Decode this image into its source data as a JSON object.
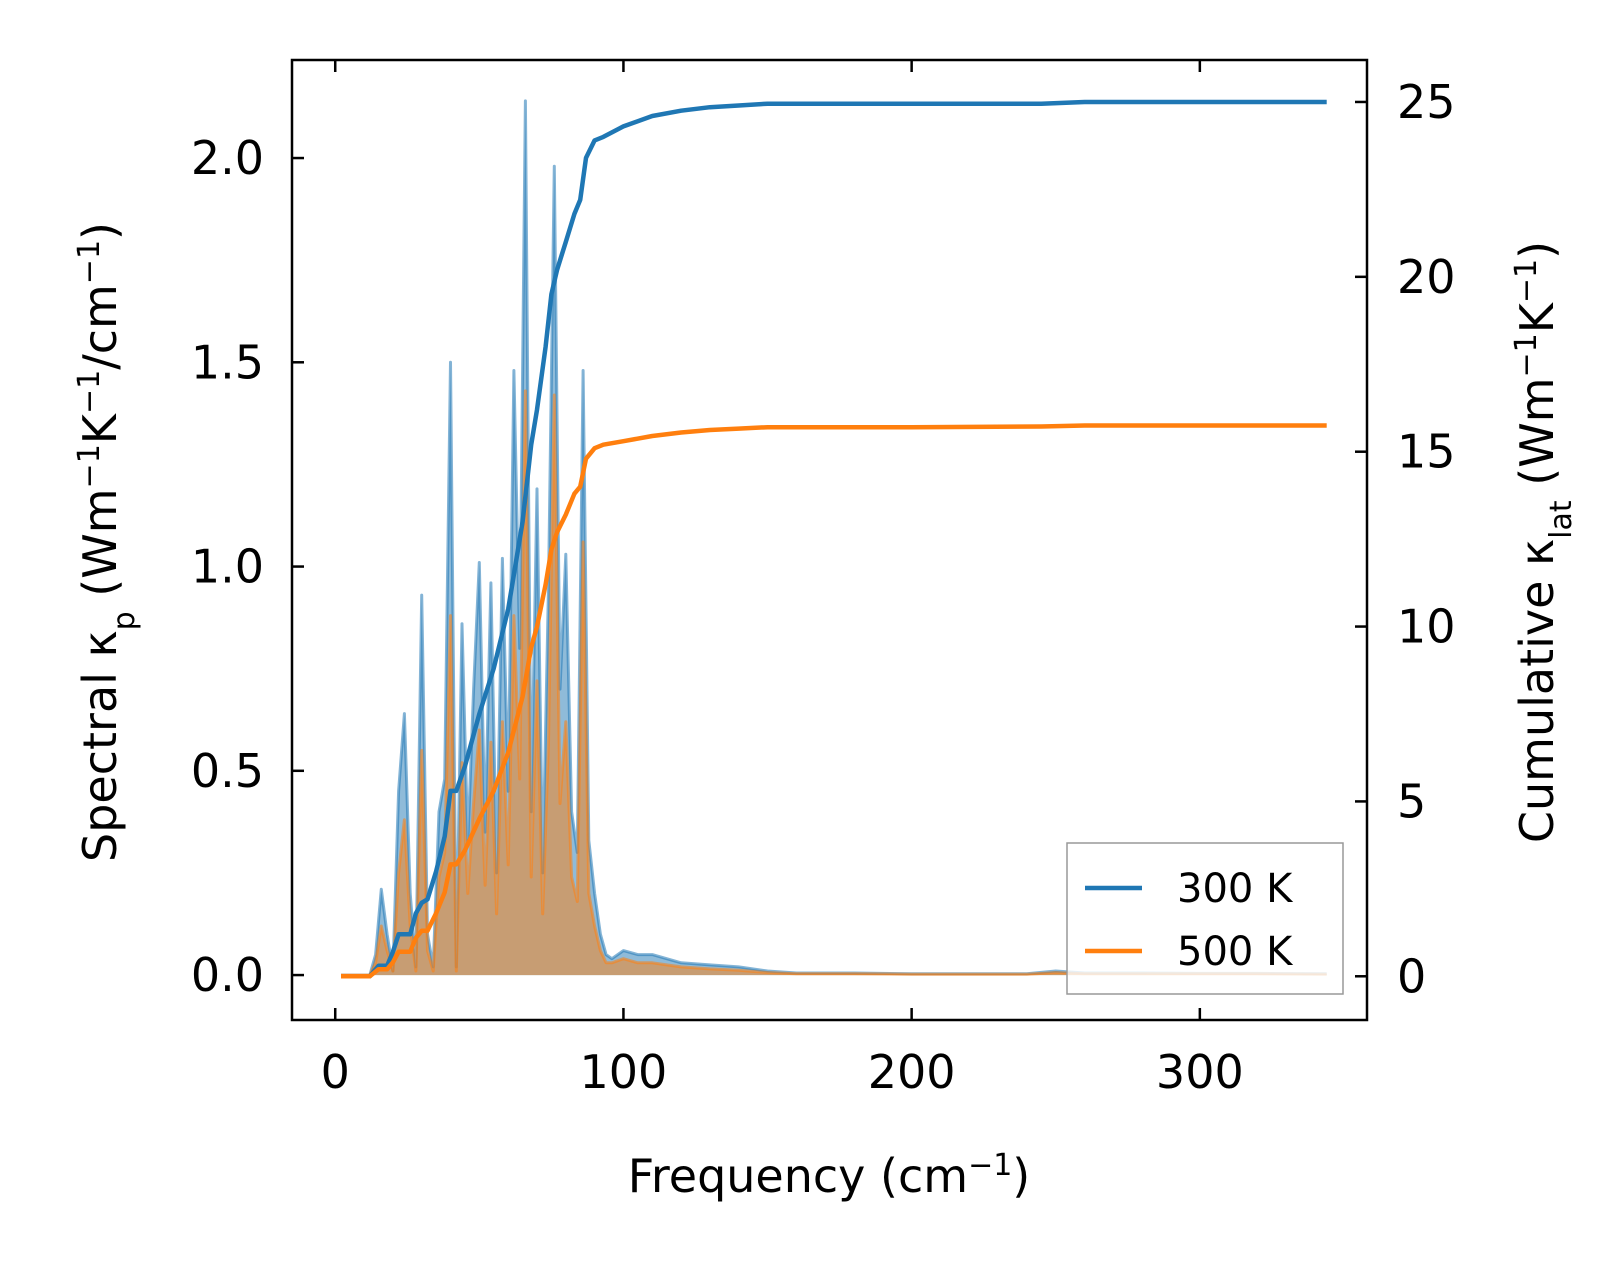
{
  "chart_data": {
    "type": "line",
    "xlabel": "Frequency (cm⁻¹)",
    "ylabel_left": "Spectral κₚ (Wm⁻¹K⁻¹/cm⁻¹)",
    "ylabel_right": "Cumulative κₗₐₜ (Wm⁻¹K⁻¹)",
    "xlim": [
      -15,
      358
    ],
    "ylim_left": [
      -0.11,
      2.24
    ],
    "ylim_right": [
      -1.25,
      26.2
    ],
    "x_ticks": [
      0,
      100,
      200,
      300
    ],
    "y_ticks_left": [
      "0.0",
      "0.5",
      "1.0",
      "1.5",
      "2.0"
    ],
    "y_ticks_right": [
      0,
      5,
      10,
      15,
      20,
      25
    ],
    "legend": {
      "position": "bottom-right",
      "entries": [
        "300 K",
        "500 K"
      ]
    },
    "colors": {
      "300 K": "#1f77b4",
      "500 K": "#ff7f0e"
    },
    "spectral": {
      "x": [
        2,
        12,
        14,
        16,
        18,
        20,
        22,
        24,
        26,
        28,
        30,
        32,
        34,
        36,
        38,
        40,
        42,
        44,
        46,
        48,
        50,
        52,
        54,
        56,
        58,
        60,
        62,
        64,
        66,
        68,
        70,
        72,
        74,
        76,
        78,
        80,
        82,
        84,
        86,
        88,
        90,
        92,
        94,
        96,
        100,
        105,
        110,
        115,
        120,
        130,
        140,
        150,
        160,
        180,
        200,
        220,
        240,
        250,
        260,
        280,
        300,
        320,
        344
      ],
      "series": [
        {
          "name": "300 K",
          "values": [
            0,
            0,
            0.05,
            0.21,
            0.1,
            0.01,
            0.45,
            0.64,
            0.2,
            0.02,
            0.93,
            0.1,
            0.02,
            0.4,
            0.48,
            1.5,
            0.02,
            0.86,
            0.32,
            0.7,
            1.01,
            0.35,
            0.96,
            0.25,
            1.02,
            0.45,
            1.48,
            0.8,
            2.14,
            0.4,
            1.19,
            0.25,
            0.95,
            1.98,
            0.7,
            1.03,
            0.4,
            0.3,
            1.48,
            0.33,
            0.2,
            0.1,
            0.05,
            0.04,
            0.06,
            0.05,
            0.05,
            0.04,
            0.03,
            0.025,
            0.02,
            0.01,
            0.005,
            0.005,
            0.003,
            0.003,
            0.003,
            0.01,
            0.005,
            0.005,
            0.004,
            0.004,
            0.003
          ]
        },
        {
          "name": "500 K",
          "values": [
            0,
            0,
            0.03,
            0.12,
            0.06,
            0.01,
            0.25,
            0.38,
            0.12,
            0.01,
            0.55,
            0.06,
            0.01,
            0.24,
            0.3,
            0.88,
            0.01,
            0.52,
            0.2,
            0.42,
            0.6,
            0.22,
            0.57,
            0.15,
            0.62,
            0.27,
            0.88,
            0.48,
            1.43,
            0.24,
            0.72,
            0.15,
            0.57,
            1.42,
            0.42,
            0.62,
            0.24,
            0.18,
            1.06,
            0.2,
            0.12,
            0.06,
            0.03,
            0.03,
            0.04,
            0.03,
            0.03,
            0.025,
            0.02,
            0.015,
            0.012,
            0.006,
            0.003,
            0.003,
            0.002,
            0.002,
            0.002,
            0.006,
            0.003,
            0.003,
            0.003,
            0.003,
            0.002
          ]
        }
      ]
    },
    "cumulative": {
      "series": [
        {
          "name": "300 K",
          "x": [
            2,
            12,
            15,
            18,
            20,
            22,
            24,
            26,
            28,
            30,
            32,
            35,
            38,
            40,
            42,
            45,
            50,
            55,
            60,
            65,
            68,
            70,
            73,
            75,
            77,
            80,
            83,
            85,
            87,
            90,
            93,
            100,
            110,
            120,
            130,
            140,
            150,
            200,
            245,
            260,
            344
          ],
          "values": [
            0,
            0,
            0.3,
            0.3,
            0.7,
            1.2,
            1.2,
            1.2,
            1.8,
            2.1,
            2.2,
            3.0,
            4.0,
            5.3,
            5.3,
            6.0,
            7.5,
            8.8,
            10.5,
            13.0,
            15.2,
            16.2,
            18.0,
            19.5,
            20.2,
            21.0,
            21.8,
            22.2,
            23.4,
            23.9,
            24.0,
            24.3,
            24.6,
            24.75,
            24.85,
            24.9,
            24.95,
            24.95,
            24.95,
            25.0,
            25.0
          ]
        },
        {
          "name": "500 K",
          "x": [
            2,
            12,
            15,
            18,
            20,
            22,
            24,
            26,
            28,
            30,
            32,
            35,
            38,
            40,
            42,
            45,
            50,
            55,
            60,
            65,
            68,
            70,
            73,
            75,
            77,
            80,
            83,
            85,
            87,
            90,
            93,
            100,
            110,
            120,
            130,
            140,
            150,
            200,
            245,
            260,
            344
          ],
          "values": [
            0,
            0,
            0.2,
            0.2,
            0.4,
            0.7,
            0.7,
            0.7,
            1.1,
            1.3,
            1.3,
            1.8,
            2.4,
            3.2,
            3.2,
            3.6,
            4.5,
            5.3,
            6.4,
            8.0,
            9.4,
            10.0,
            11.2,
            12.2,
            12.7,
            13.2,
            13.8,
            14.0,
            14.8,
            15.1,
            15.2,
            15.3,
            15.45,
            15.55,
            15.62,
            15.66,
            15.7,
            15.7,
            15.72,
            15.75,
            15.75
          ]
        }
      ]
    }
  }
}
